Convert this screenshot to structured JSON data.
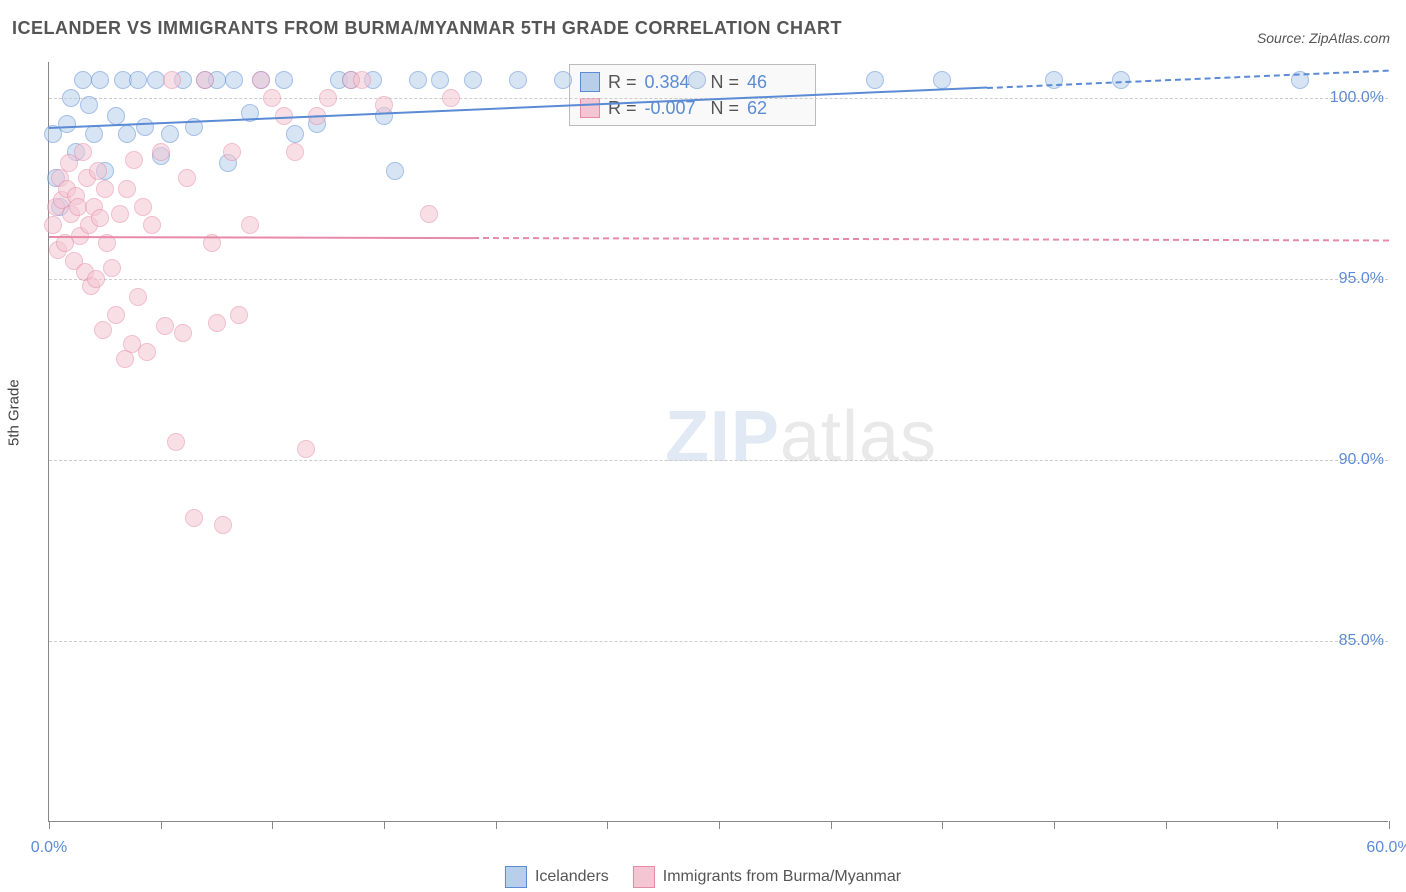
{
  "title": "ICELANDER VS IMMIGRANTS FROM BURMA/MYANMAR 5TH GRADE CORRELATION CHART",
  "source": "Source: ZipAtlas.com",
  "yaxis_label": "5th Grade",
  "watermark": {
    "part1": "ZIP",
    "part2": "atlas"
  },
  "chart": {
    "type": "scatter",
    "xlim": [
      0,
      60
    ],
    "ylim": [
      80,
      101
    ],
    "x_ticks": [
      0,
      5,
      10,
      15,
      20,
      25,
      30,
      35,
      40,
      45,
      50,
      55,
      60
    ],
    "x_tick_labels": {
      "0": "0.0%",
      "60": "60.0%"
    },
    "y_grid": [
      85,
      90,
      95,
      100
    ],
    "y_tick_labels": {
      "85": "85.0%",
      "90": "90.0%",
      "95": "95.0%",
      "100": "100.0%"
    },
    "grid_color": "#cccccc",
    "background_color": "#ffffff",
    "series": [
      {
        "name": "Icelanders",
        "fill": "#b7cfea",
        "stroke": "#5b8bd4",
        "marker_radius": 9,
        "fill_opacity": 0.55,
        "r_value": "0.384",
        "n_value": "46",
        "trend": {
          "x1": 0,
          "y1": 99.2,
          "x2": 60,
          "y2": 100.8,
          "solid_until_x": 42
        },
        "points": [
          [
            0.2,
            99.0
          ],
          [
            0.3,
            97.8
          ],
          [
            0.5,
            97.0
          ],
          [
            0.8,
            99.3
          ],
          [
            1.0,
            100.0
          ],
          [
            1.2,
            98.5
          ],
          [
            1.5,
            100.5
          ],
          [
            1.8,
            99.8
          ],
          [
            2.0,
            99.0
          ],
          [
            2.3,
            100.5
          ],
          [
            2.5,
            98.0
          ],
          [
            3.0,
            99.5
          ],
          [
            3.3,
            100.5
          ],
          [
            3.5,
            99.0
          ],
          [
            4.0,
            100.5
          ],
          [
            4.3,
            99.2
          ],
          [
            4.8,
            100.5
          ],
          [
            5.0,
            98.4
          ],
          [
            5.4,
            99.0
          ],
          [
            6.0,
            100.5
          ],
          [
            6.5,
            99.2
          ],
          [
            7.0,
            100.5
          ],
          [
            7.5,
            100.5
          ],
          [
            8.0,
            98.2
          ],
          [
            8.3,
            100.5
          ],
          [
            9.0,
            99.6
          ],
          [
            9.5,
            100.5
          ],
          [
            10.5,
            100.5
          ],
          [
            11.0,
            99.0
          ],
          [
            12.0,
            99.3
          ],
          [
            13.0,
            100.5
          ],
          [
            13.5,
            100.5
          ],
          [
            14.5,
            100.5
          ],
          [
            15.0,
            99.5
          ],
          [
            15.5,
            98.0
          ],
          [
            16.5,
            100.5
          ],
          [
            17.5,
            100.5
          ],
          [
            19.0,
            100.5
          ],
          [
            21.0,
            100.5
          ],
          [
            23.0,
            100.5
          ],
          [
            29.0,
            100.5
          ],
          [
            37.0,
            100.5
          ],
          [
            40.0,
            100.5
          ],
          [
            45.0,
            100.5
          ],
          [
            48.0,
            100.5
          ],
          [
            56.0,
            100.5
          ]
        ]
      },
      {
        "name": "Immigrants from Burma/Myanmar",
        "fill": "#f4c6d3",
        "stroke": "#e68aa8",
        "marker_radius": 9,
        "fill_opacity": 0.55,
        "r_value": "-0.007",
        "n_value": "62",
        "trend": {
          "x1": 0,
          "y1": 96.2,
          "x2": 60,
          "y2": 96.1,
          "solid_until_x": 19
        },
        "points": [
          [
            0.2,
            96.5
          ],
          [
            0.3,
            97.0
          ],
          [
            0.4,
            95.8
          ],
          [
            0.5,
            97.8
          ],
          [
            0.6,
            97.2
          ],
          [
            0.7,
            96.0
          ],
          [
            0.8,
            97.5
          ],
          [
            0.9,
            98.2
          ],
          [
            1.0,
            96.8
          ],
          [
            1.1,
            95.5
          ],
          [
            1.2,
            97.3
          ],
          [
            1.3,
            97.0
          ],
          [
            1.4,
            96.2
          ],
          [
            1.5,
            98.5
          ],
          [
            1.6,
            95.2
          ],
          [
            1.7,
            97.8
          ],
          [
            1.8,
            96.5
          ],
          [
            1.9,
            94.8
          ],
          [
            2.0,
            97.0
          ],
          [
            2.1,
            95.0
          ],
          [
            2.2,
            98.0
          ],
          [
            2.3,
            96.7
          ],
          [
            2.4,
            93.6
          ],
          [
            2.5,
            97.5
          ],
          [
            2.6,
            96.0
          ],
          [
            2.8,
            95.3
          ],
          [
            3.0,
            94.0
          ],
          [
            3.2,
            96.8
          ],
          [
            3.4,
            92.8
          ],
          [
            3.5,
            97.5
          ],
          [
            3.7,
            93.2
          ],
          [
            3.8,
            98.3
          ],
          [
            4.0,
            94.5
          ],
          [
            4.2,
            97.0
          ],
          [
            4.4,
            93.0
          ],
          [
            4.6,
            96.5
          ],
          [
            5.0,
            98.5
          ],
          [
            5.2,
            93.7
          ],
          [
            5.5,
            100.5
          ],
          [
            5.7,
            90.5
          ],
          [
            6.0,
            93.5
          ],
          [
            6.2,
            97.8
          ],
          [
            6.5,
            88.4
          ],
          [
            7.0,
            100.5
          ],
          [
            7.3,
            96.0
          ],
          [
            7.5,
            93.8
          ],
          [
            7.8,
            88.2
          ],
          [
            8.2,
            98.5
          ],
          [
            8.5,
            94.0
          ],
          [
            9.0,
            96.5
          ],
          [
            9.5,
            100.5
          ],
          [
            10.0,
            100.0
          ],
          [
            10.5,
            99.5
          ],
          [
            11.0,
            98.5
          ],
          [
            11.5,
            90.3
          ],
          [
            12.0,
            99.5
          ],
          [
            12.5,
            100.0
          ],
          [
            13.5,
            100.5
          ],
          [
            14.0,
            100.5
          ],
          [
            15.0,
            99.8
          ],
          [
            17.0,
            96.8
          ],
          [
            18.0,
            100.0
          ]
        ]
      }
    ]
  },
  "stats_box": {
    "r_label": "R =",
    "n_label": "N ="
  },
  "legend_labels": [
    "Icelanders",
    "Immigrants from Burma/Myanmar"
  ]
}
